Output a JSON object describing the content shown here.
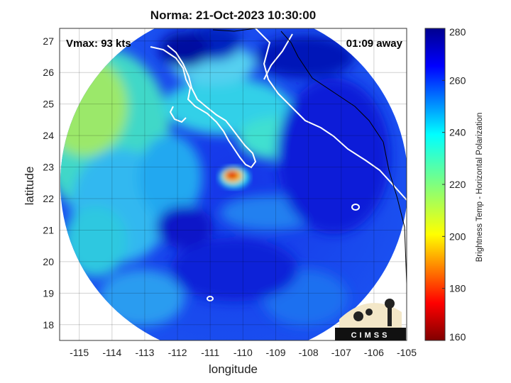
{
  "title": "Norma: 21-Oct-2023 10:30:00",
  "annotations": {
    "vmax": "Vmax: 93 kts",
    "away": "01:09 away"
  },
  "axes": {
    "xlabel": "longitude",
    "ylabel": "latitude",
    "xlim": [
      -115.6,
      -105
    ],
    "ylim": [
      17.5,
      27.4
    ],
    "xticks": [
      -115,
      -114,
      -113,
      -112,
      -111,
      -110,
      -109,
      -108,
      -107,
      -106,
      -105
    ],
    "yticks": [
      18,
      19,
      20,
      21,
      22,
      23,
      24,
      25,
      26,
      27
    ],
    "grid": true
  },
  "colorbar": {
    "label": "Brightness Temp - Horizontal Polarization",
    "min": 160,
    "max": 280,
    "ticks": [
      160,
      180,
      200,
      220,
      240,
      260,
      280
    ],
    "colormap": "jet"
  },
  "storm": {
    "name": "Norma",
    "center_lon": -110.4,
    "center_lat": 22.5,
    "min_temp": 170
  },
  "logo": {
    "text": "CIMSS"
  },
  "colors": {
    "deep": "#00008f",
    "warm": "#1030e0",
    "cold": "#b00000"
  }
}
